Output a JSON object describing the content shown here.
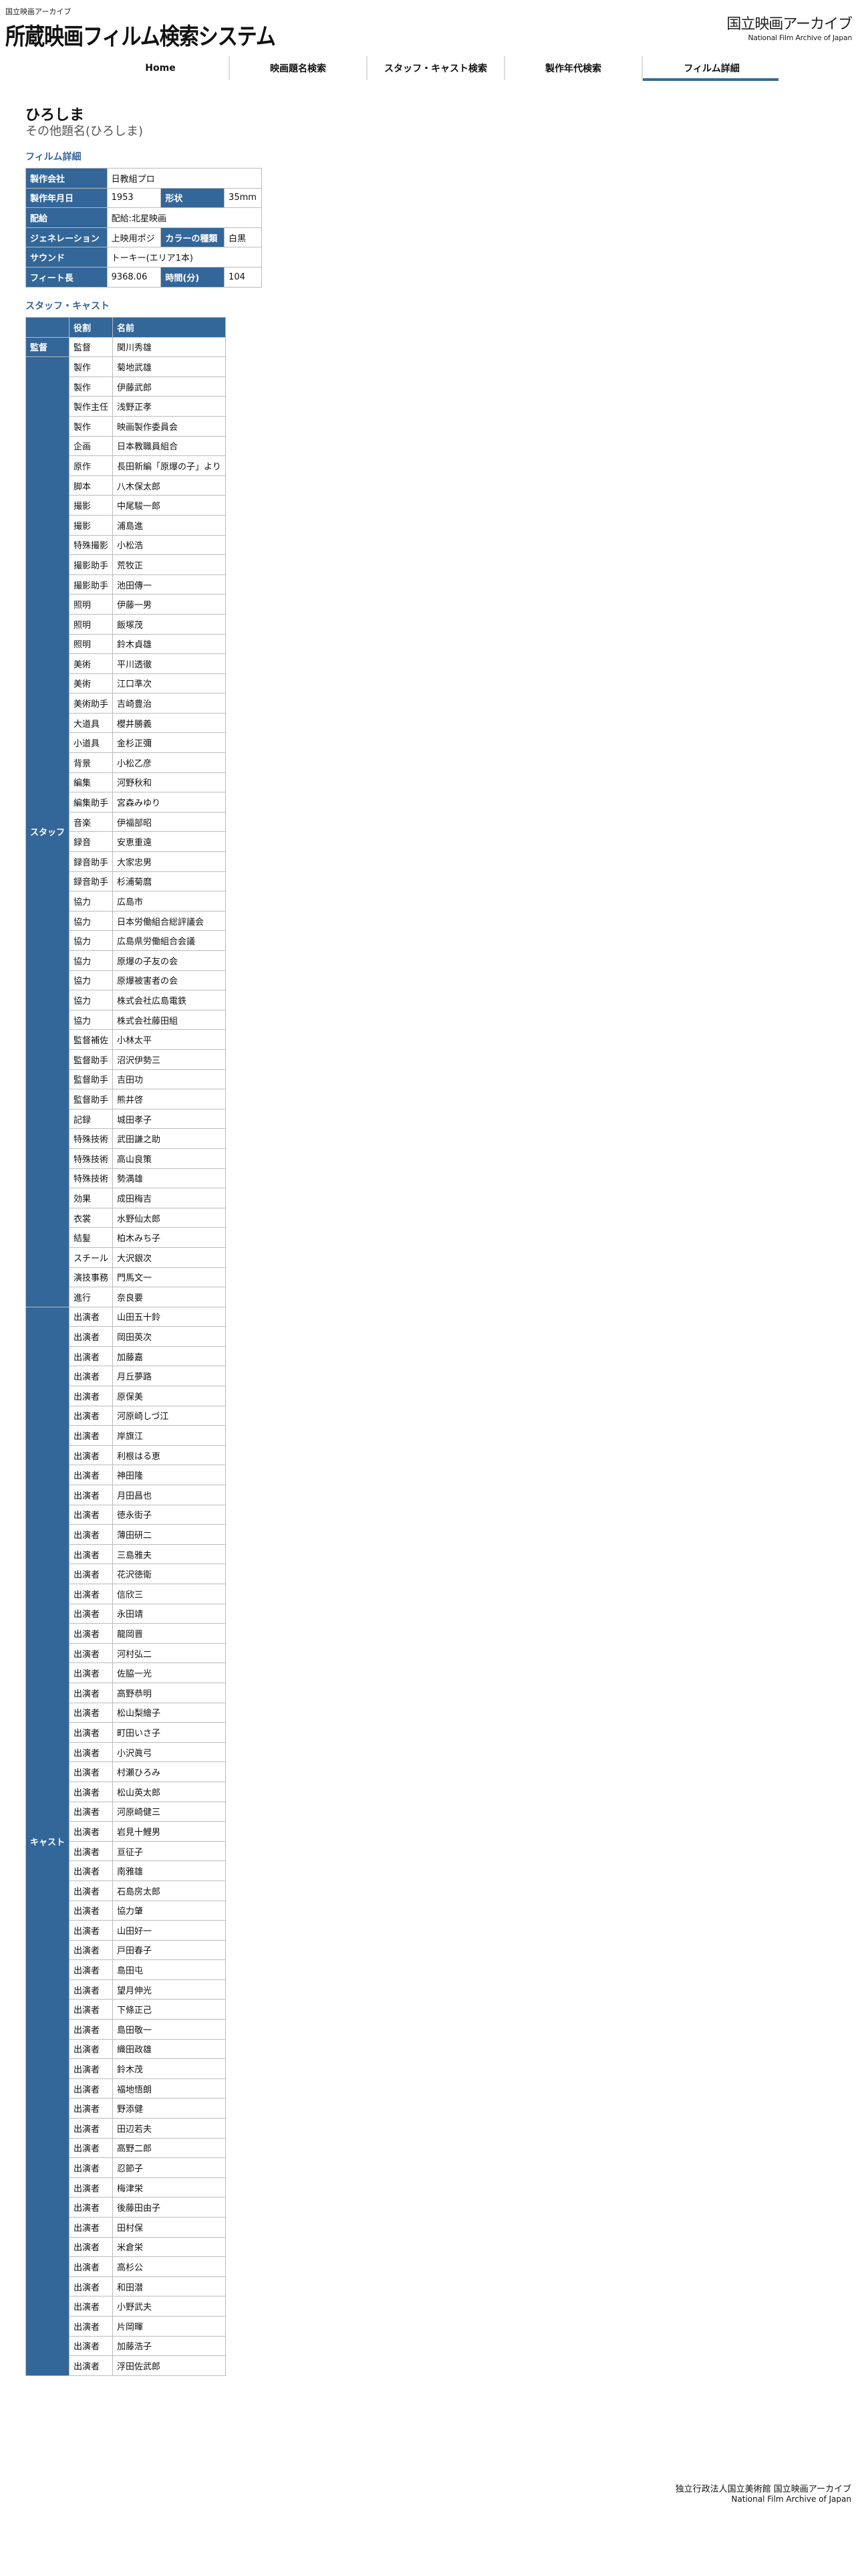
{
  "header": {
    "org_small": "国立映画アーカイブ",
    "site_title": "所蔵映画フィルム検索システム",
    "logo_jp": "国立映画アーカイブ",
    "logo_en": "National Film Archive of Japan"
  },
  "nav": {
    "items": [
      {
        "label": "Home"
      },
      {
        "label": "映画題名検索"
      },
      {
        "label": "スタッフ・キャスト検索"
      },
      {
        "label": "製作年代検索"
      },
      {
        "label": "フィルム詳細",
        "active": true
      }
    ]
  },
  "film": {
    "title": "ひろしま",
    "other_title": "その他題名(ひろしま)"
  },
  "details": {
    "heading": "フィルム詳細",
    "production_company_label": "製作会社",
    "production_company": "日教組プロ",
    "date_label": "製作年月日",
    "date": "1953",
    "format_label": "形状",
    "format": "35mm",
    "distribution_label": "配給",
    "distribution": "配給:北星映画",
    "generation_label": "ジェネレーション",
    "generation": "上映用ポジ",
    "color_label": "カラーの種類",
    "color": "白黒",
    "sound_label": "サウンド",
    "sound": "トーキー(エリア1本)",
    "feet_label": "フィート長",
    "feet": "9368.06",
    "runtime_label": "時間(分)",
    "runtime": "104"
  },
  "staff_cast": {
    "heading": "スタッフ・キャスト",
    "col_role": "役割",
    "col_name": "名前",
    "groups": [
      {
        "label": "監督",
        "rows": [
          [
            "監督",
            "関川秀雄"
          ]
        ]
      },
      {
        "label": "スタッフ",
        "rows": [
          [
            "製作",
            "菊地武雄"
          ],
          [
            "製作",
            "伊藤武郎"
          ],
          [
            "製作主任",
            "浅野正孝"
          ],
          [
            "製作",
            "映画製作委員会"
          ],
          [
            "企画",
            "日本教職員組合"
          ],
          [
            "原作",
            "長田新編「原爆の子」より"
          ],
          [
            "脚本",
            "八木保太郎"
          ],
          [
            "撮影",
            "中尾駿一郎"
          ],
          [
            "撮影",
            "浦島進"
          ],
          [
            "特殊撮影",
            "小松浩"
          ],
          [
            "撮影助手",
            "荒牧正"
          ],
          [
            "撮影助手",
            "池田傳一"
          ],
          [
            "照明",
            "伊藤一男"
          ],
          [
            "照明",
            "飯塚茂"
          ],
          [
            "照明",
            "鈴木貞雄"
          ],
          [
            "美術",
            "平川透徹"
          ],
          [
            "美術",
            "江口準次"
          ],
          [
            "美術助手",
            "吉崎豊治"
          ],
          [
            "大道具",
            "櫻井勝義"
          ],
          [
            "小道具",
            "金杉正彌"
          ],
          [
            "背景",
            "小松乙彦"
          ],
          [
            "編集",
            "河野秋和"
          ],
          [
            "編集助手",
            "宮森みゆり"
          ],
          [
            "音楽",
            "伊福部昭"
          ],
          [
            "録音",
            "安恵重遠"
          ],
          [
            "録音助手",
            "大家忠男"
          ],
          [
            "録音助手",
            "杉浦菊麿"
          ],
          [
            "協力",
            "広島市"
          ],
          [
            "協力",
            "日本労働組合総評議会"
          ],
          [
            "協力",
            "広島県労働組合会議"
          ],
          [
            "協力",
            "原爆の子友の会"
          ],
          [
            "協力",
            "原爆被害者の会"
          ],
          [
            "協力",
            "株式会社広島電鉄"
          ],
          [
            "協力",
            "株式会社藤田組"
          ],
          [
            "監督補佐",
            "小林太平"
          ],
          [
            "監督助手",
            "沼沢伊勢三"
          ],
          [
            "監督助手",
            "吉田功"
          ],
          [
            "監督助手",
            "熊井啓"
          ],
          [
            "記録",
            "城田孝子"
          ],
          [
            "特殊技術",
            "武田謙之助"
          ],
          [
            "特殊技術",
            "高山良策"
          ],
          [
            "特殊技術",
            "勢満雄"
          ],
          [
            "効果",
            "成田梅吉"
          ],
          [
            "衣裳",
            "水野仙太郎"
          ],
          [
            "結髪",
            "柏木みち子"
          ],
          [
            "スチール",
            "大沢銀次"
          ],
          [
            "演技事務",
            "門馬文一"
          ],
          [
            "進行",
            "奈良要"
          ]
        ]
      },
      {
        "label": "キャスト",
        "rows": [
          [
            "出演者",
            "山田五十鈴"
          ],
          [
            "出演者",
            "岡田英次"
          ],
          [
            "出演者",
            "加藤嘉"
          ],
          [
            "出演者",
            "月丘夢路"
          ],
          [
            "出演者",
            "原保美"
          ],
          [
            "出演者",
            "河原崎しづ江"
          ],
          [
            "出演者",
            "岸旗江"
          ],
          [
            "出演者",
            "利根はる恵"
          ],
          [
            "出演者",
            "神田隆"
          ],
          [
            "出演者",
            "月田昌也"
          ],
          [
            "出演者",
            "徳永街子"
          ],
          [
            "出演者",
            "薄田研二"
          ],
          [
            "出演者",
            "三島雅夫"
          ],
          [
            "出演者",
            "花沢徳衛"
          ],
          [
            "出演者",
            "信欣三"
          ],
          [
            "出演者",
            "永田靖"
          ],
          [
            "出演者",
            "龍岡晋"
          ],
          [
            "出演者",
            "河村弘二"
          ],
          [
            "出演者",
            "佐脇一光"
          ],
          [
            "出演者",
            "高野恭明"
          ],
          [
            "出演者",
            "松山梨繪子"
          ],
          [
            "出演者",
            "町田いさ子"
          ],
          [
            "出演者",
            "小沢眞弓"
          ],
          [
            "出演者",
            "村瀬ひろみ"
          ],
          [
            "出演者",
            "松山英太郎"
          ],
          [
            "出演者",
            "河原崎健三"
          ],
          [
            "出演者",
            "岩見十鯉男"
          ],
          [
            "出演者",
            "亘征子"
          ],
          [
            "出演者",
            "南雅雄"
          ],
          [
            "出演者",
            "石島房太郎"
          ],
          [
            "出演者",
            "協力肇"
          ],
          [
            "出演者",
            "山田好一"
          ],
          [
            "出演者",
            "戸田春子"
          ],
          [
            "出演者",
            "島田屯"
          ],
          [
            "出演者",
            "望月伸光"
          ],
          [
            "出演者",
            "下條正己"
          ],
          [
            "出演者",
            "島田敬一"
          ],
          [
            "出演者",
            "織田政雄"
          ],
          [
            "出演者",
            "鈴木茂"
          ],
          [
            "出演者",
            "福地悟朗"
          ],
          [
            "出演者",
            "野添健"
          ],
          [
            "出演者",
            "田辺若夫"
          ],
          [
            "出演者",
            "高野二郎"
          ],
          [
            "出演者",
            "忍節子"
          ],
          [
            "出演者",
            "梅津栄"
          ],
          [
            "出演者",
            "後藤田由子"
          ],
          [
            "出演者",
            "田村保"
          ],
          [
            "出演者",
            "米倉栄"
          ],
          [
            "出演者",
            "高杉公"
          ],
          [
            "出演者",
            "和田潜"
          ],
          [
            "出演者",
            "小野武夫"
          ],
          [
            "出演者",
            "片岡暉"
          ],
          [
            "出演者",
            "加藤浩子"
          ],
          [
            "出演者",
            "浮田佐武郎"
          ]
        ]
      }
    ]
  },
  "footer": {
    "org_jp": "独立行政法人国立美術館 国立映画アーカイブ",
    "org_en": "National Film Archive of Japan"
  },
  "colors": {
    "accent": "#336699",
    "nav_underline": "#3a6a8f"
  }
}
